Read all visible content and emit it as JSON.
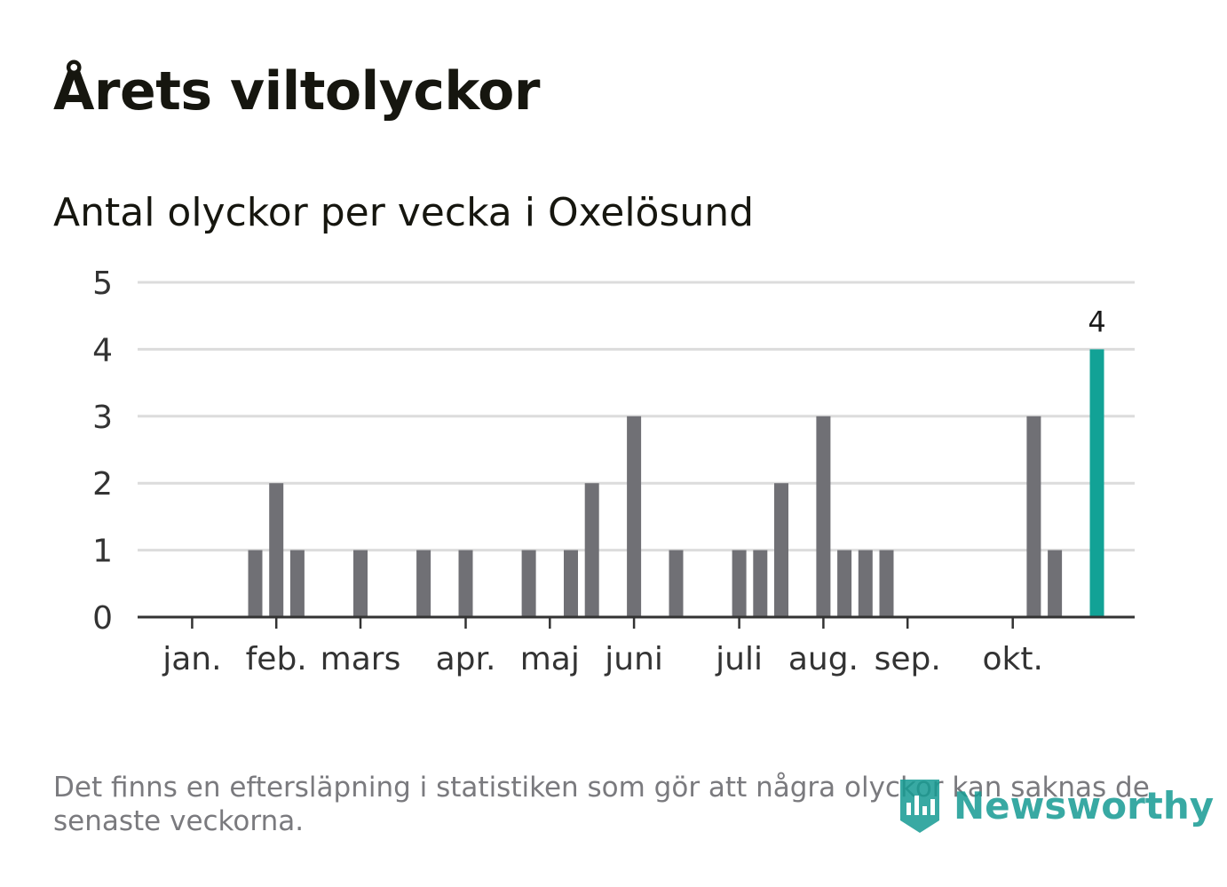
{
  "header": {
    "title": "Årets viltolyckor",
    "subtitle": "Antal olyckor per vecka i Oxelösund"
  },
  "footer": {
    "note": "Det finns en eftersläpning i statistiken som gör att några olyckor kan saknas de senaste veckorna.",
    "brand": "Newsworthy",
    "brand_color": "#169b93"
  },
  "colors": {
    "bar": "#707075",
    "highlight": "#12a296",
    "grid": "#dcdcdc",
    "axis": "#333333",
    "tick_text": "#333333",
    "label_text": "#1a1a1a"
  },
  "chart_data": {
    "type": "bar",
    "title": "Årets viltolyckor",
    "subtitle": "Antal olyckor per vecka i Oxelösund",
    "xlabel": "",
    "ylabel": "",
    "ylim": [
      0,
      5
    ],
    "yticks": [
      0,
      1,
      2,
      3,
      4,
      5
    ],
    "grid": true,
    "week_index": [
      1,
      2,
      3,
      4,
      5,
      6,
      7,
      8,
      9,
      10,
      11,
      12,
      13,
      14,
      15,
      16,
      17,
      18,
      19,
      20,
      21,
      22,
      23,
      24,
      25,
      26,
      27,
      28,
      29,
      30,
      31,
      32,
      33,
      34,
      35,
      36,
      37,
      38,
      39,
      40,
      41,
      42,
      43,
      44,
      45,
      46
    ],
    "values": [
      0,
      0,
      0,
      0,
      0,
      1,
      2,
      1,
      0,
      0,
      1,
      0,
      0,
      1,
      0,
      1,
      0,
      0,
      1,
      0,
      1,
      2,
      0,
      3,
      0,
      1,
      0,
      0,
      1,
      1,
      2,
      0,
      3,
      1,
      1,
      1,
      0,
      0,
      0,
      0,
      0,
      0,
      3,
      1,
      0,
      4
    ],
    "highlight_index": 45,
    "highlight_label": "4",
    "month_labels": [
      {
        "label": "jan.",
        "week": 3
      },
      {
        "label": "feb.",
        "week": 7
      },
      {
        "label": "mars",
        "week": 11
      },
      {
        "label": "apr.",
        "week": 16
      },
      {
        "label": "maj",
        "week": 20
      },
      {
        "label": "juni",
        "week": 24
      },
      {
        "label": "juli",
        "week": 29
      },
      {
        "label": "aug.",
        "week": 33
      },
      {
        "label": "sep.",
        "week": 37
      },
      {
        "label": "okt.",
        "week": 42
      }
    ]
  }
}
